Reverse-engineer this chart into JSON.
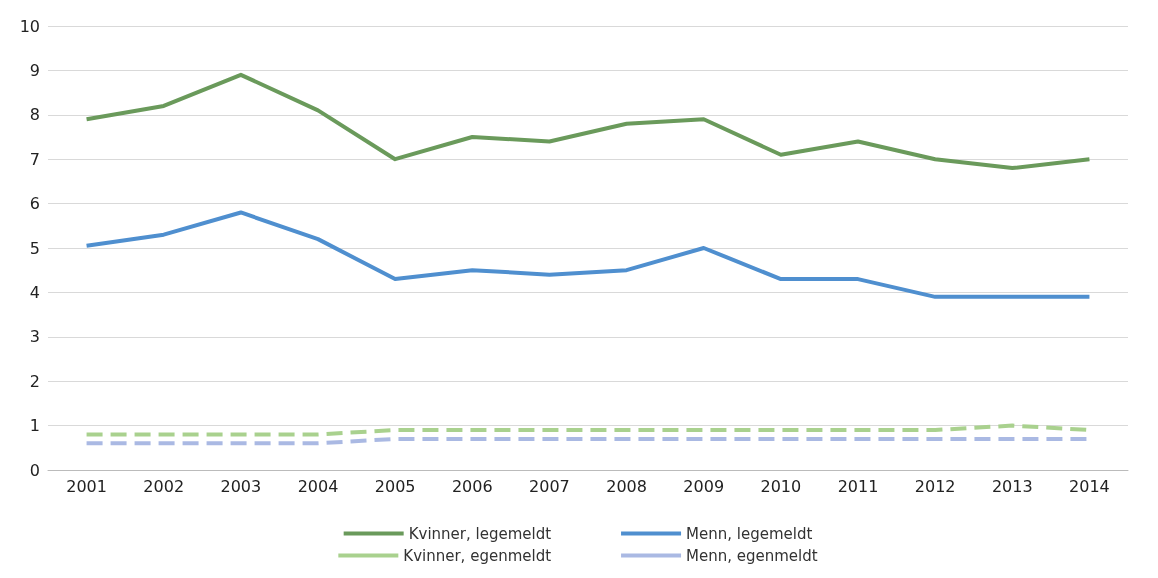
{
  "chart_data": {
    "type": "line",
    "categories": [
      "2001",
      "2002",
      "2003",
      "2004",
      "2005",
      "2006",
      "2007",
      "2008",
      "2009",
      "2010",
      "2011",
      "2012",
      "2013",
      "2014"
    ],
    "series": [
      {
        "name": "Kvinner, legemeldt",
        "color": "#6a9a5b",
        "line_style": "solid",
        "values": [
          7.9,
          8.2,
          8.9,
          8.1,
          7.0,
          7.5,
          7.4,
          7.8,
          7.9,
          7.1,
          7.4,
          7.0,
          6.8,
          7.0
        ]
      },
      {
        "name": "Menn, legemeldt",
        "color": "#4f8fcf",
        "line_style": "solid",
        "values": [
          5.05,
          5.3,
          5.8,
          5.2,
          4.3,
          4.5,
          4.4,
          4.5,
          5.0,
          4.3,
          4.3,
          3.9,
          3.9,
          3.9
        ]
      },
      {
        "name": "Kvinner, egenmeldt",
        "color": "#a9d18e",
        "line_style": "dashed",
        "values": [
          0.8,
          0.8,
          0.8,
          0.8,
          0.9,
          0.9,
          0.9,
          0.9,
          0.9,
          0.9,
          0.9,
          0.9,
          1.0,
          0.9
        ]
      },
      {
        "name": "Menn, egenmeldt",
        "color": "#aab9e3",
        "line_style": "dashed",
        "values": [
          0.6,
          0.6,
          0.6,
          0.6,
          0.7,
          0.7,
          0.7,
          0.7,
          0.7,
          0.7,
          0.7,
          0.7,
          0.7,
          0.7
        ]
      }
    ],
    "ylim": [
      0,
      10
    ],
    "yticks": [
      0,
      1,
      2,
      3,
      4,
      5,
      6,
      7,
      8,
      9,
      10
    ],
    "grid": "y",
    "legend": "bottom",
    "marker": "none"
  }
}
